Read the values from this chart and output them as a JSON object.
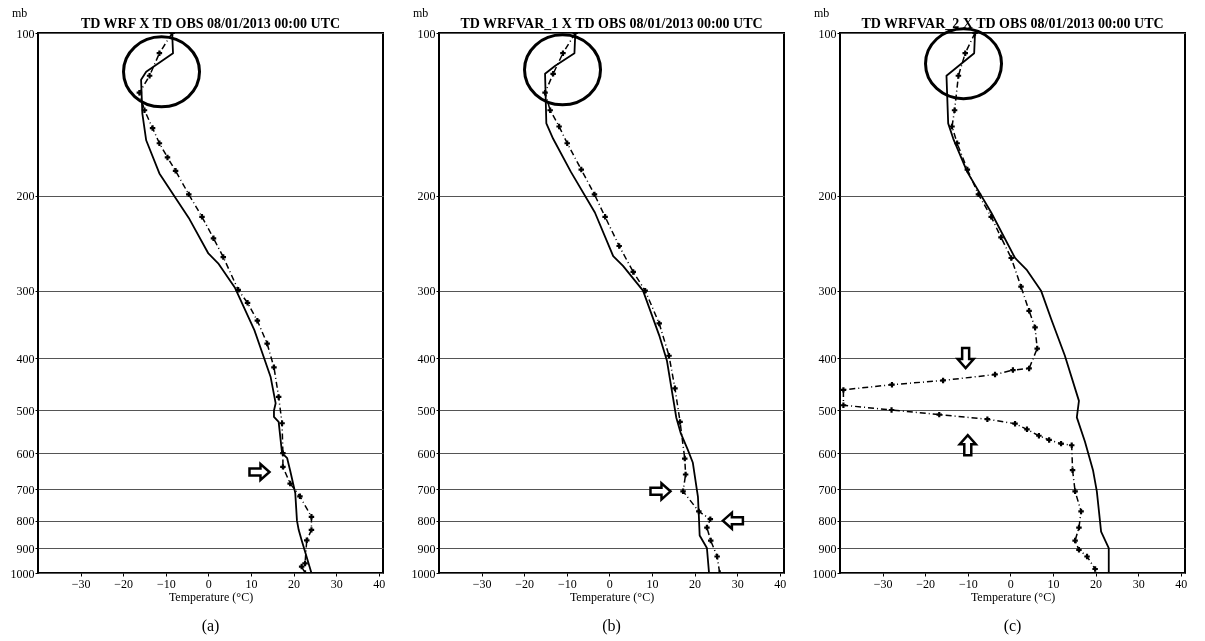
{
  "chart_data": [
    {
      "type": "line",
      "title": "TD WRF X TD OBS 08/01/2013 00:00 UTC",
      "xlabel": "Temperature (°C)",
      "ylabel": "mb",
      "xlim": [
        -40,
        41
      ],
      "ylim": [
        1000,
        100
      ],
      "xticks": [
        -30,
        -20,
        -10,
        0,
        10,
        20,
        30,
        40
      ],
      "yticks": [
        100,
        200,
        300,
        400,
        500,
        600,
        700,
        800,
        900,
        1000
      ],
      "log": "y",
      "grid": "y",
      "annotations": [
        "(a)"
      ],
      "series": [
        {
          "color": "#000000",
          "line_style": "solid",
          "marker": "none",
          "x": [
            -8.5,
            -8.3,
            -14.6,
            -15.8,
            -15.5,
            -14.6,
            -11.5,
            -4.6,
            0,
            2.3,
            6.2,
            10.8,
            14.6,
            15.8,
            15.4,
            15.4,
            16.5,
            17.3,
            18.5,
            19.2,
            20.4,
            20.8,
            21.2,
            21.9,
            24.2
          ],
          "values": [
            100,
            109,
            118,
            122,
            141,
            158,
            182,
            220,
            256,
            267,
            296,
            355,
            433,
            485,
            500,
            514,
            525,
            600,
            613,
            646,
            711,
            800,
            832,
            870,
            1000
          ]
        },
        {
          "color": "#000000",
          "line_style": "dashed",
          "marker": "cross",
          "x": [
            -8.5,
            -11.5,
            -13.8,
            -16.2,
            -15,
            -13.1,
            -11.5,
            -9.6,
            -7.7,
            -4.6,
            -1.5,
            1.2,
            3.5,
            7,
            9.2,
            11.5,
            13.8,
            15.4,
            16.5,
            17.3,
            17.5,
            17.5,
            19.2,
            21.5,
            24.2,
            24.2,
            23.1,
            22.7,
            21.9,
            22.7
          ],
          "values": [
            100,
            109,
            120,
            129,
            139,
            150,
            160,
            170,
            180,
            199,
            219,
            240,
            260,
            299,
            316,
            341,
            376,
            416,
            472,
            528,
            600,
            636,
            683,
            721,
            787,
            832,
            870,
            960,
            973,
            1000
          ]
        }
      ]
    },
    {
      "type": "line",
      "title": "TD WRFVAR_1 X TD OBS 08/01/2013 00:00 UTC",
      "xlabel": "Temperature (°C)",
      "ylabel": "mb",
      "xlim": [
        -40,
        41
      ],
      "ylim": [
        1000,
        100
      ],
      "xticks": [
        -30,
        -20,
        -10,
        0,
        10,
        20,
        30,
        40
      ],
      "yticks": [
        100,
        200,
        300,
        400,
        500,
        600,
        700,
        800,
        900,
        1000
      ],
      "log": "y",
      "grid": "y",
      "annotations": [
        "(b)"
      ],
      "series": [
        {
          "color": "#000000",
          "line_style": "solid",
          "marker": "none",
          "x": [
            -8,
            -8.2,
            -12.7,
            -15.1,
            -14.8,
            -13.2,
            -9,
            -3.4,
            0.9,
            3.2,
            7.9,
            11.7,
            13.5,
            15.4,
            15.7,
            16.8,
            18.4,
            19.6,
            20.6,
            20.8,
            21,
            21.2,
            22.9,
            23.4
          ],
          "values": [
            100,
            109,
            115,
            119,
            147,
            157,
            181,
            215,
            259,
            270,
            300,
            363,
            404,
            498,
            515,
            552,
            591,
            625,
            706,
            723,
            781,
            852,
            899,
            1000
          ]
        },
        {
          "color": "#000000",
          "line_style": "dashed",
          "marker": "cross",
          "x": [
            -8,
            -10.9,
            -13.2,
            -15.1,
            -13.9,
            -11.8,
            -9.9,
            -6.6,
            -3.5,
            -1,
            2.3,
            5.6,
            8.4,
            11.7,
            14,
            15.4,
            16.6,
            17.7,
            17.9,
            17.3,
            21,
            23.7,
            22.9,
            23.8,
            25.3,
            25.9
          ],
          "values": [
            100,
            109,
            119,
            129,
            139,
            149,
            160,
            179,
            199,
            219,
            248,
            277,
            300,
            345,
            396,
            455,
            525,
            614,
            657,
            706,
            769,
            795,
            824,
            871,
            932,
            1000
          ]
        }
      ]
    },
    {
      "type": "line",
      "title": "TD WRFVAR_2 X TD OBS 08/01/2013 00:00 UTC",
      "xlabel": "Temperature (°C)",
      "ylabel": "mb",
      "xlim": [
        -40,
        41
      ],
      "ylim": [
        1000,
        100
      ],
      "xticks": [
        -30,
        -20,
        -10,
        0,
        10,
        20,
        30,
        40
      ],
      "yticks": [
        100,
        200,
        300,
        400,
        500,
        600,
        700,
        800,
        900,
        1000
      ],
      "log": "y",
      "grid": "y",
      "annotations": [
        "(c)"
      ],
      "series": [
        {
          "color": "#000000",
          "line_style": "solid",
          "marker": "none",
          "x": [
            -8.3,
            -8.5,
            -15,
            -14.6,
            -13.4,
            -10.1,
            -4.5,
            1.1,
            3.9,
            7.2,
            9.6,
            12.8,
            16.1,
            15.6,
            17.5,
            19.4,
            20.3,
            20.8,
            21.3,
            23.1,
            23.1
          ],
          "values": [
            100,
            109,
            120,
            147,
            157,
            181,
            215,
            261,
            275,
            300,
            339,
            396,
            480,
            515,
            571,
            645,
            706,
            769,
            838,
            899,
            1000
          ]
        },
        {
          "color": "#000000",
          "line_style": "dashed",
          "marker": "cross",
          "x": [
            -8.3,
            -10.6,
            -12.2,
            -13.1,
            -13.7,
            -12.5,
            -10.1,
            -7.5,
            -4.5,
            -2.2,
            0.2,
            2.5,
            4.4,
            5.8,
            6.3,
            4.4,
            0.6,
            -3.6,
            -15.8,
            -27.8,
            -39.2,
            -39.2,
            -27.9,
            -16.7,
            -5.4,
            1.1,
            3.9,
            6.7,
            9.1,
            11.9,
            14.4,
            14.6,
            15.2,
            16.6,
            16.1,
            15.2,
            16.1,
            18,
            19.9
          ],
          "values": [
            100,
            109,
            120,
            139,
            149,
            160,
            179,
            199,
            219,
            239,
            261,
            295,
            327,
            351,
            384,
            418,
            421,
            429,
            440,
            448,
            458,
            489,
            499,
            509,
            519,
            529,
            542,
            557,
            567,
            576,
            580,
            645,
            706,
            769,
            824,
            871,
            906,
            932,
            983
          ]
        }
      ]
    }
  ]
}
